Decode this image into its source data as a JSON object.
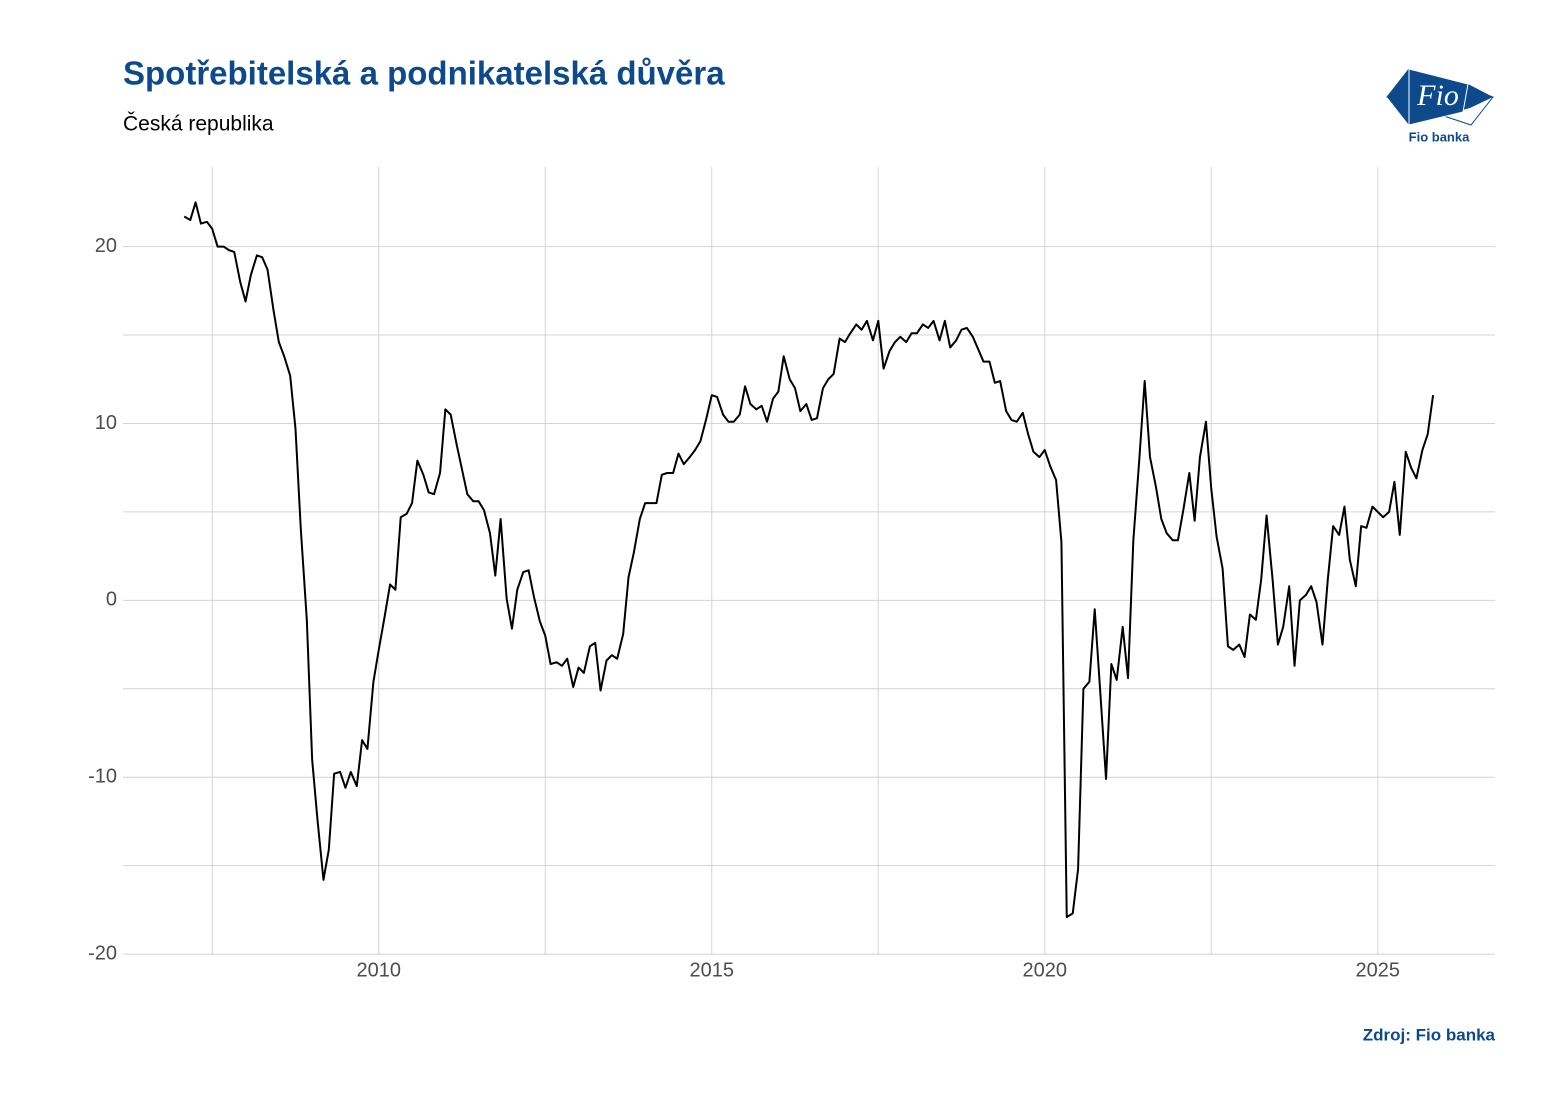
{
  "chart_data": {
    "type": "line",
    "title": "Spotřebitelská a podnikatelská důvěra",
    "subtitle": "Česká republika",
    "source": "Zdroj: Fio banka",
    "logo_text": "Fio",
    "logo_caption": "Fio banka",
    "color": "#000000",
    "grid": true,
    "xlim": [
      2006.16,
      2026.76
    ],
    "ylim": [
      -20.05,
      24.5
    ],
    "xticks": [
      2010,
      2015,
      2020,
      2025
    ],
    "xminorticks": [
      2007.5,
      2012.5,
      2017.5,
      2022.5
    ],
    "yticks": [
      -20,
      -10,
      0,
      10,
      20
    ],
    "yminorticks": [
      -15,
      -5,
      5,
      15
    ],
    "x": [
      2007.08,
      2007.17,
      2007.25,
      2007.33,
      2007.42,
      2007.5,
      2007.58,
      2007.67,
      2007.75,
      2007.83,
      2007.92,
      2008,
      2008.08,
      2008.17,
      2008.25,
      2008.33,
      2008.42,
      2008.5,
      2008.58,
      2008.67,
      2008.75,
      2008.83,
      2008.92,
      2009,
      2009.08,
      2009.17,
      2009.25,
      2009.33,
      2009.42,
      2009.5,
      2009.58,
      2009.67,
      2009.75,
      2009.83,
      2009.92,
      2010,
      2010.08,
      2010.17,
      2010.25,
      2010.33,
      2010.42,
      2010.5,
      2010.58,
      2010.67,
      2010.75,
      2010.83,
      2010.92,
      2011,
      2011.08,
      2011.17,
      2011.25,
      2011.33,
      2011.42,
      2011.5,
      2011.58,
      2011.67,
      2011.75,
      2011.83,
      2011.92,
      2012,
      2012.08,
      2012.17,
      2012.25,
      2012.33,
      2012.42,
      2012.5,
      2012.58,
      2012.67,
      2012.75,
      2012.83,
      2012.92,
      2013,
      2013.08,
      2013.17,
      2013.25,
      2013.33,
      2013.42,
      2013.5,
      2013.58,
      2013.67,
      2013.75,
      2013.83,
      2013.92,
      2014,
      2014.08,
      2014.17,
      2014.25,
      2014.33,
      2014.42,
      2014.5,
      2014.58,
      2014.67,
      2014.75,
      2014.83,
      2014.92,
      2015,
      2015.08,
      2015.17,
      2015.25,
      2015.33,
      2015.42,
      2015.5,
      2015.58,
      2015.67,
      2015.75,
      2015.83,
      2015.92,
      2016,
      2016.08,
      2016.17,
      2016.25,
      2016.33,
      2016.42,
      2016.5,
      2016.58,
      2016.67,
      2016.75,
      2016.83,
      2016.92,
      2017,
      2017.08,
      2017.17,
      2017.25,
      2017.33,
      2017.42,
      2017.5,
      2017.58,
      2017.67,
      2017.75,
      2017.83,
      2017.92,
      2018,
      2018.08,
      2018.17,
      2018.25,
      2018.33,
      2018.42,
      2018.5,
      2018.58,
      2018.67,
      2018.75,
      2018.83,
      2018.92,
      2019,
      2019.08,
      2019.17,
      2019.25,
      2019.33,
      2019.42,
      2019.5,
      2019.58,
      2019.67,
      2019.75,
      2019.83,
      2019.92,
      2020,
      2020.08,
      2020.17,
      2020.25,
      2020.33,
      2020.42,
      2020.5,
      2020.58,
      2020.67,
      2020.75,
      2020.83,
      2020.92,
      2021,
      2021.08,
      2021.17,
      2021.25,
      2021.33,
      2021.42,
      2021.5,
      2021.58,
      2021.67,
      2021.75,
      2021.83,
      2021.92,
      2022,
      2022.08,
      2022.17,
      2022.25,
      2022.33,
      2022.42,
      2022.5,
      2022.58,
      2022.67,
      2022.75,
      2022.83,
      2022.92,
      2023,
      2023.08,
      2023.17,
      2023.25,
      2023.33,
      2023.42,
      2023.5,
      2023.58,
      2023.67,
      2023.75,
      2023.83,
      2023.92,
      2024,
      2024.08,
      2024.17,
      2024.25,
      2024.33,
      2024.42,
      2024.5,
      2024.58,
      2024.67,
      2024.75,
      2024.83,
      2024.92,
      2025,
      2025.08,
      2025.17,
      2025.25,
      2025.33,
      2025.42,
      2025.5,
      2025.58,
      2025.67,
      2025.75,
      2025.83
    ],
    "values": [
      21.7,
      21.5,
      22.5,
      21.3,
      21.4,
      21.0,
      20.0,
      20.0,
      19.8,
      19.7,
      18.0,
      16.9,
      18.4,
      19.5,
      19.4,
      18.7,
      16.4,
      14.6,
      13.8,
      12.7,
      9.7,
      4.0,
      -1.1,
      -9.0,
      -12.4,
      -15.8,
      -14.1,
      -9.8,
      -9.7,
      -10.6,
      -9.7,
      -10.5,
      -7.9,
      -8.4,
      -4.6,
      -2.8,
      -1.1,
      0.9,
      0.6,
      4.7,
      4.9,
      5.5,
      7.9,
      7.1,
      6.1,
      6.0,
      7.2,
      10.8,
      10.5,
      8.8,
      7.4,
      6.0,
      5.6,
      5.6,
      5.1,
      3.8,
      1.4,
      4.6,
      0.1,
      -1.6,
      0.6,
      1.6,
      1.7,
      0.2,
      -1.2,
      -2.0,
      -3.6,
      -3.5,
      -3.7,
      -3.3,
      -4.9,
      -3.8,
      -4.1,
      -2.6,
      -2.4,
      -5.1,
      -3.4,
      -3.1,
      -3.3,
      -1.9,
      1.3,
      2.7,
      4.6,
      5.5,
      5.5,
      5.5,
      7.1,
      7.2,
      7.2,
      8.3,
      7.7,
      8.1,
      8.5,
      9.0,
      10.3,
      11.6,
      11.5,
      10.5,
      10.1,
      10.1,
      10.5,
      12.1,
      11.1,
      10.8,
      11.0,
      10.1,
      11.4,
      11.8,
      13.8,
      12.5,
      12.0,
      10.7,
      11.1,
      10.2,
      10.3,
      12.0,
      12.5,
      12.8,
      14.8,
      14.6,
      15.1,
      15.6,
      15.3,
      15.8,
      14.7,
      15.8,
      13.1,
      14.1,
      14.6,
      14.9,
      14.6,
      15.1,
      15.1,
      15.6,
      15.4,
      15.8,
      14.7,
      15.8,
      14.3,
      14.7,
      15.3,
      15.4,
      14.9,
      14.2,
      13.5,
      13.5,
      12.3,
      12.4,
      10.7,
      10.2,
      10.1,
      10.6,
      9.4,
      8.4,
      8.1,
      8.5,
      7.6,
      6.8,
      3.3,
      -17.9,
      -17.7,
      -15.2,
      -5.0,
      -4.6,
      -0.5,
      -5.0,
      -10.1,
      -3.6,
      -4.5,
      -1.5,
      -4.4,
      3.4,
      8.0,
      12.4,
      8.1,
      6.4,
      4.6,
      3.8,
      3.4,
      3.4,
      5.1,
      7.2,
      4.5,
      8.1,
      10.1,
      6.3,
      3.6,
      1.8,
      -2.6,
      -2.8,
      -2.5,
      -3.2,
      -0.8,
      -1.1,
      1.2,
      4.8,
      1.2,
      -2.5,
      -1.5,
      0.8,
      -3.7,
      0.0,
      0.3,
      0.8,
      -0.1,
      -2.5,
      1.2,
      4.2,
      3.7,
      5.3,
      2.3,
      0.8,
      4.2,
      4.1,
      5.3,
      5.0,
      4.7,
      5.0,
      6.7,
      3.7,
      8.4,
      7.5,
      6.9,
      8.5,
      9.4,
      11.6
    ]
  }
}
